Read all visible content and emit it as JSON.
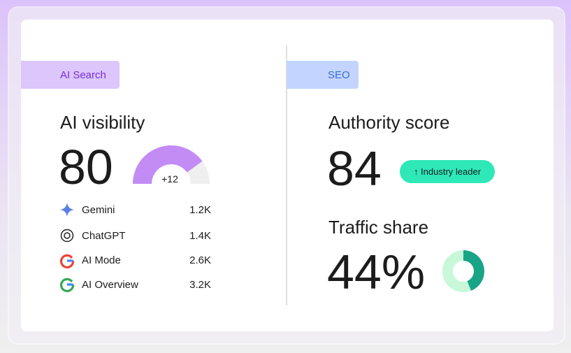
{
  "ai_search": {
    "tag": "AI Search",
    "title": "AI visibility",
    "score": 80,
    "change": "+12",
    "rows": [
      {
        "name": "Gemini",
        "value": "1.2K"
      },
      {
        "name": "ChatGPT",
        "value": "1.4K"
      },
      {
        "name": "AI Mode",
        "value": "2.6K"
      },
      {
        "name": "AI Overview",
        "value": "3.2K"
      }
    ]
  },
  "seo": {
    "tag": "SEO",
    "title": "Authority score",
    "score": "84",
    "badge": "↑ Industry leader",
    "traffic_title": "Traffic share",
    "traffic": {
      "value": 44,
      "label": "44%"
    }
  }
}
